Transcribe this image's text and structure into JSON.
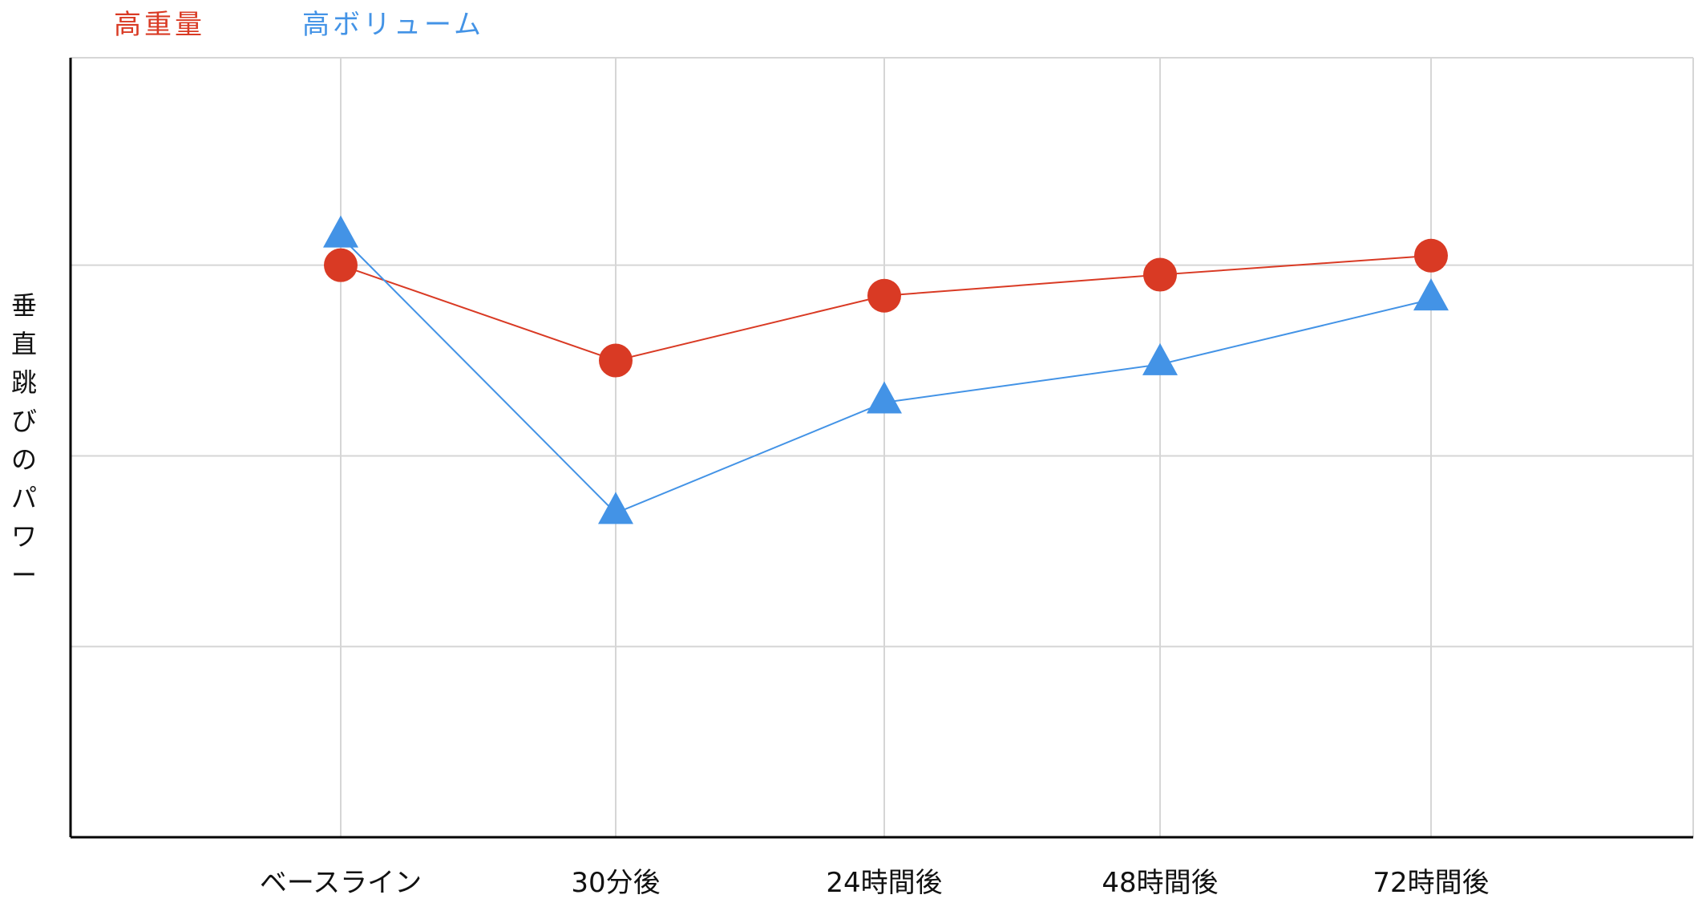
{
  "chart_data": {
    "type": "line",
    "categories": [
      "ベースライン",
      "30分後",
      "24時間後",
      "48時間後",
      "72時間後"
    ],
    "series": [
      {
        "name": "高重量",
        "color": "#d93a24",
        "marker": "circle",
        "values": [
          3.0,
          2.5,
          2.84,
          2.95,
          3.05
        ]
      },
      {
        "name": "高ボリューム",
        "color": "#4393e6",
        "marker": "triangle",
        "values": [
          3.15,
          1.7,
          2.28,
          2.48,
          2.82
        ]
      }
    ],
    "ylabel": "垂直跳びのパワー",
    "xlabel": "",
    "title": "",
    "ylim": [
      0,
      4
    ],
    "grid": true,
    "legend_position": "top-left"
  }
}
